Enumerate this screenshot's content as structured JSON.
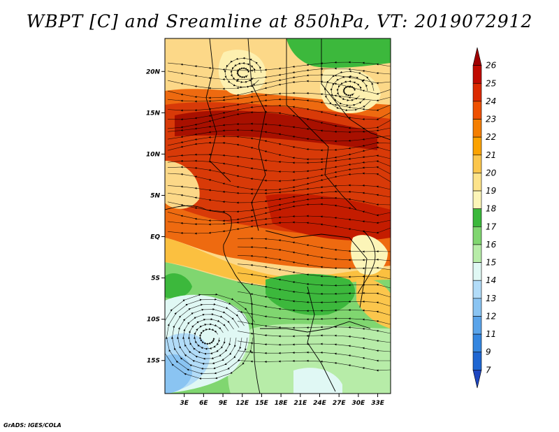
{
  "title": "WBPT [C] and Sreamline at 850hPa, VT: 2019072912",
  "credit": "GrADS: IGES/COLA",
  "lat_labels": [
    "20N",
    "15N",
    "10N",
    "5N",
    "EQ",
    "5S",
    "10S",
    "15S"
  ],
  "lat_values": [
    20,
    15,
    10,
    5,
    0,
    -5,
    -10,
    -15
  ],
  "lon_labels": [
    "3E",
    "6E",
    "9E",
    "12E",
    "15E",
    "18E",
    "21E",
    "24E",
    "27E",
    "30E",
    "33E"
  ],
  "lon_values": [
    3,
    6,
    9,
    12,
    15,
    18,
    21,
    24,
    27,
    30,
    33
  ],
  "colorbar": {
    "levels": [
      "26",
      "25",
      "24",
      "23",
      "22",
      "21",
      "20",
      "19",
      "18",
      "17",
      "16",
      "15",
      "14",
      "13",
      "12",
      "11",
      "9",
      "7"
    ],
    "colors": [
      "#a00000",
      "#c00a00",
      "#dc2a00",
      "#ee5000",
      "#f47e00",
      "#fba200",
      "#fbc64c",
      "#fde38a",
      "#fcf5b8",
      "#3bb83b",
      "#80d670",
      "#b7eca8",
      "#e0f8f4",
      "#b2dcf8",
      "#8ac4f2",
      "#5aa4ea",
      "#3486e0",
      "#1e66d2",
      "#1e46c0"
    ]
  },
  "map": {
    "lon_range": [
      0,
      35
    ],
    "lat_range": [
      -19,
      24
    ],
    "field": "WBPT",
    "units": "C",
    "level": "850hPa",
    "valid_time": "2019072912"
  }
}
